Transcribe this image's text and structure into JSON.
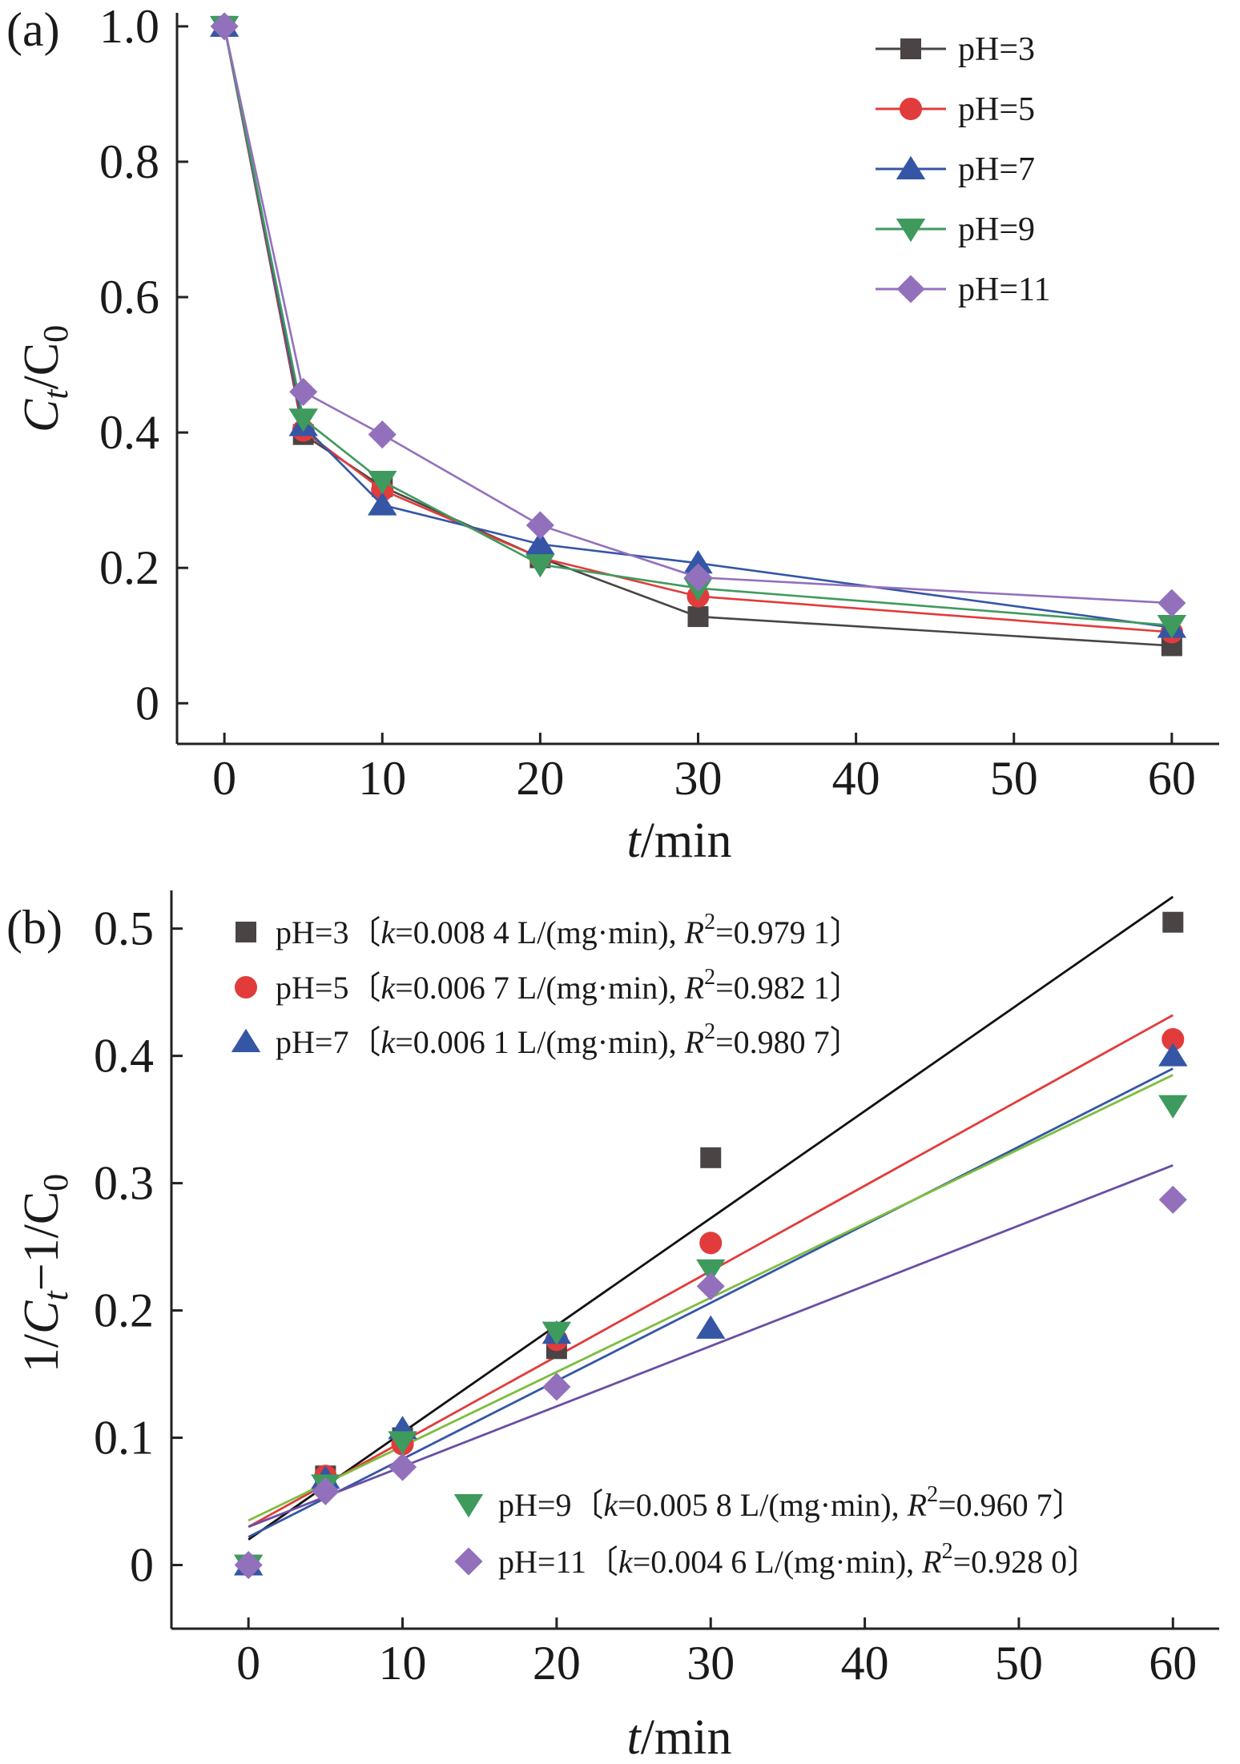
{
  "colors": {
    "pH=3": "#4a4444",
    "pH=5": "#e23b3b",
    "pH=7": "#3456a5",
    "pH=9": "#3f9a5e",
    "pH=11": "#9370bc"
  },
  "chart_data": [
    {
      "type": "line",
      "panel_label": "(a)",
      "xlabel": {
        "italic": "t",
        "rest": "/min"
      },
      "ylabel": {
        "base": "C",
        "sub1": "t",
        "mid": "/C",
        "sub2": "0"
      },
      "x": [
        0,
        5,
        10,
        20,
        30,
        60
      ],
      "x_ticks": [
        "0",
        "10",
        "20",
        "30",
        "40",
        "50",
        "60"
      ],
      "y_ticks": [
        "0",
        "0.2",
        "0.4",
        "0.6",
        "0.8",
        "1.0"
      ],
      "xlim": [
        -3,
        63
      ],
      "ylim": [
        -0.06,
        1.02
      ],
      "legend_position": "top-right",
      "series": [
        {
          "name": "pH=3",
          "marker": "square",
          "values": [
            1.0,
            0.397,
            0.32,
            0.215,
            0.128,
            0.085
          ]
        },
        {
          "name": "pH=5",
          "marker": "circle",
          "values": [
            1.0,
            0.403,
            0.315,
            0.215,
            0.158,
            0.105
          ]
        },
        {
          "name": "pH=7",
          "marker": "triangle-up",
          "values": [
            1.0,
            0.41,
            0.293,
            0.235,
            0.207,
            0.112
          ]
        },
        {
          "name": "pH=9",
          "marker": "triangle-down",
          "values": [
            1.0,
            0.42,
            0.328,
            0.205,
            0.17,
            0.115
          ]
        },
        {
          "name": "pH=11",
          "marker": "diamond",
          "values": [
            1.0,
            0.46,
            0.397,
            0.263,
            0.186,
            0.148
          ]
        }
      ]
    },
    {
      "type": "scatter",
      "panel_label": "(b)",
      "xlabel": {
        "italic": "t",
        "rest": "/min"
      },
      "ylabel": {
        "pre": "1/",
        "base": "C",
        "sub1": "t",
        "mid": "−1/C",
        "sub2": "0"
      },
      "x": [
        0,
        5,
        10,
        20,
        30,
        60
      ],
      "x_ticks": [
        "0",
        "10",
        "20",
        "30",
        "40",
        "50",
        "60"
      ],
      "y_ticks": [
        "0",
        "0.1",
        "0.2",
        "0.3",
        "0.4",
        "0.5"
      ],
      "xlim": [
        -5,
        63
      ],
      "ylim": [
        -0.05,
        0.53
      ],
      "series": [
        {
          "name": "pH=3",
          "marker": "square",
          "values": [
            0,
            0.07,
            0.1,
            0.17,
            0.32,
            0.505
          ],
          "fit": [
            0.02,
            0.525
          ],
          "legend": {
            "pre": "pH=3〔",
            "k": "k",
            "k_val": "=0.008 4 L/(mg·min), ",
            "R": "R",
            "sup": "2",
            "r_val": "=0.979 1〕"
          }
        },
        {
          "name": "pH=5",
          "marker": "circle",
          "values": [
            0,
            0.07,
            0.095,
            0.177,
            0.253,
            0.413
          ],
          "fit": [
            0.03,
            0.432
          ],
          "legend": {
            "pre": "pH=5〔",
            "k": "k",
            "k_val": "=0.006 7 L/(mg·min), ",
            "R": "R",
            "sup": "2",
            "r_val": "=0.982 1〕"
          }
        },
        {
          "name": "pH=7",
          "marker": "triangle-up",
          "values": [
            0,
            0.068,
            0.107,
            0.182,
            0.186,
            0.4
          ],
          "fit": [
            0.022,
            0.39
          ],
          "legend": {
            "pre": "pH=7〔",
            "k": "k",
            "k_val": "=0.006 1 L/(mg·min), ",
            "R": "R",
            "sup": "2",
            "r_val": "=0.980 7〕"
          }
        },
        {
          "name": "pH=9",
          "marker": "triangle-down",
          "values": [
            0,
            0.063,
            0.097,
            0.183,
            0.232,
            0.361
          ],
          "fit": [
            0.035,
            0.385
          ],
          "legend": {
            "pre": "pH=9〔",
            "k": "k",
            "k_val": "=0.005 8 L/(mg·min), ",
            "R": "R",
            "sup": "2",
            "r_val": "=0.960 7〕"
          }
        },
        {
          "name": "pH=11",
          "marker": "diamond",
          "values": [
            0,
            0.058,
            0.077,
            0.14,
            0.219,
            0.287
          ],
          "fit": [
            0.03,
            0.314
          ],
          "legend": {
            "pre": "pH=11〔",
            "k": "k",
            "k_val": "=0.004 6 L/(mg·min), ",
            "R": "R",
            "sup": "2",
            "r_val": "=0.928 0〕"
          }
        }
      ],
      "fit_colors": {
        "pH=3": "#111111",
        "pH=5": "#e23b3b",
        "pH=7": "#3456a5",
        "pH=9": "#7dbd3e",
        "pH=11": "#6a4ea3"
      }
    }
  ]
}
